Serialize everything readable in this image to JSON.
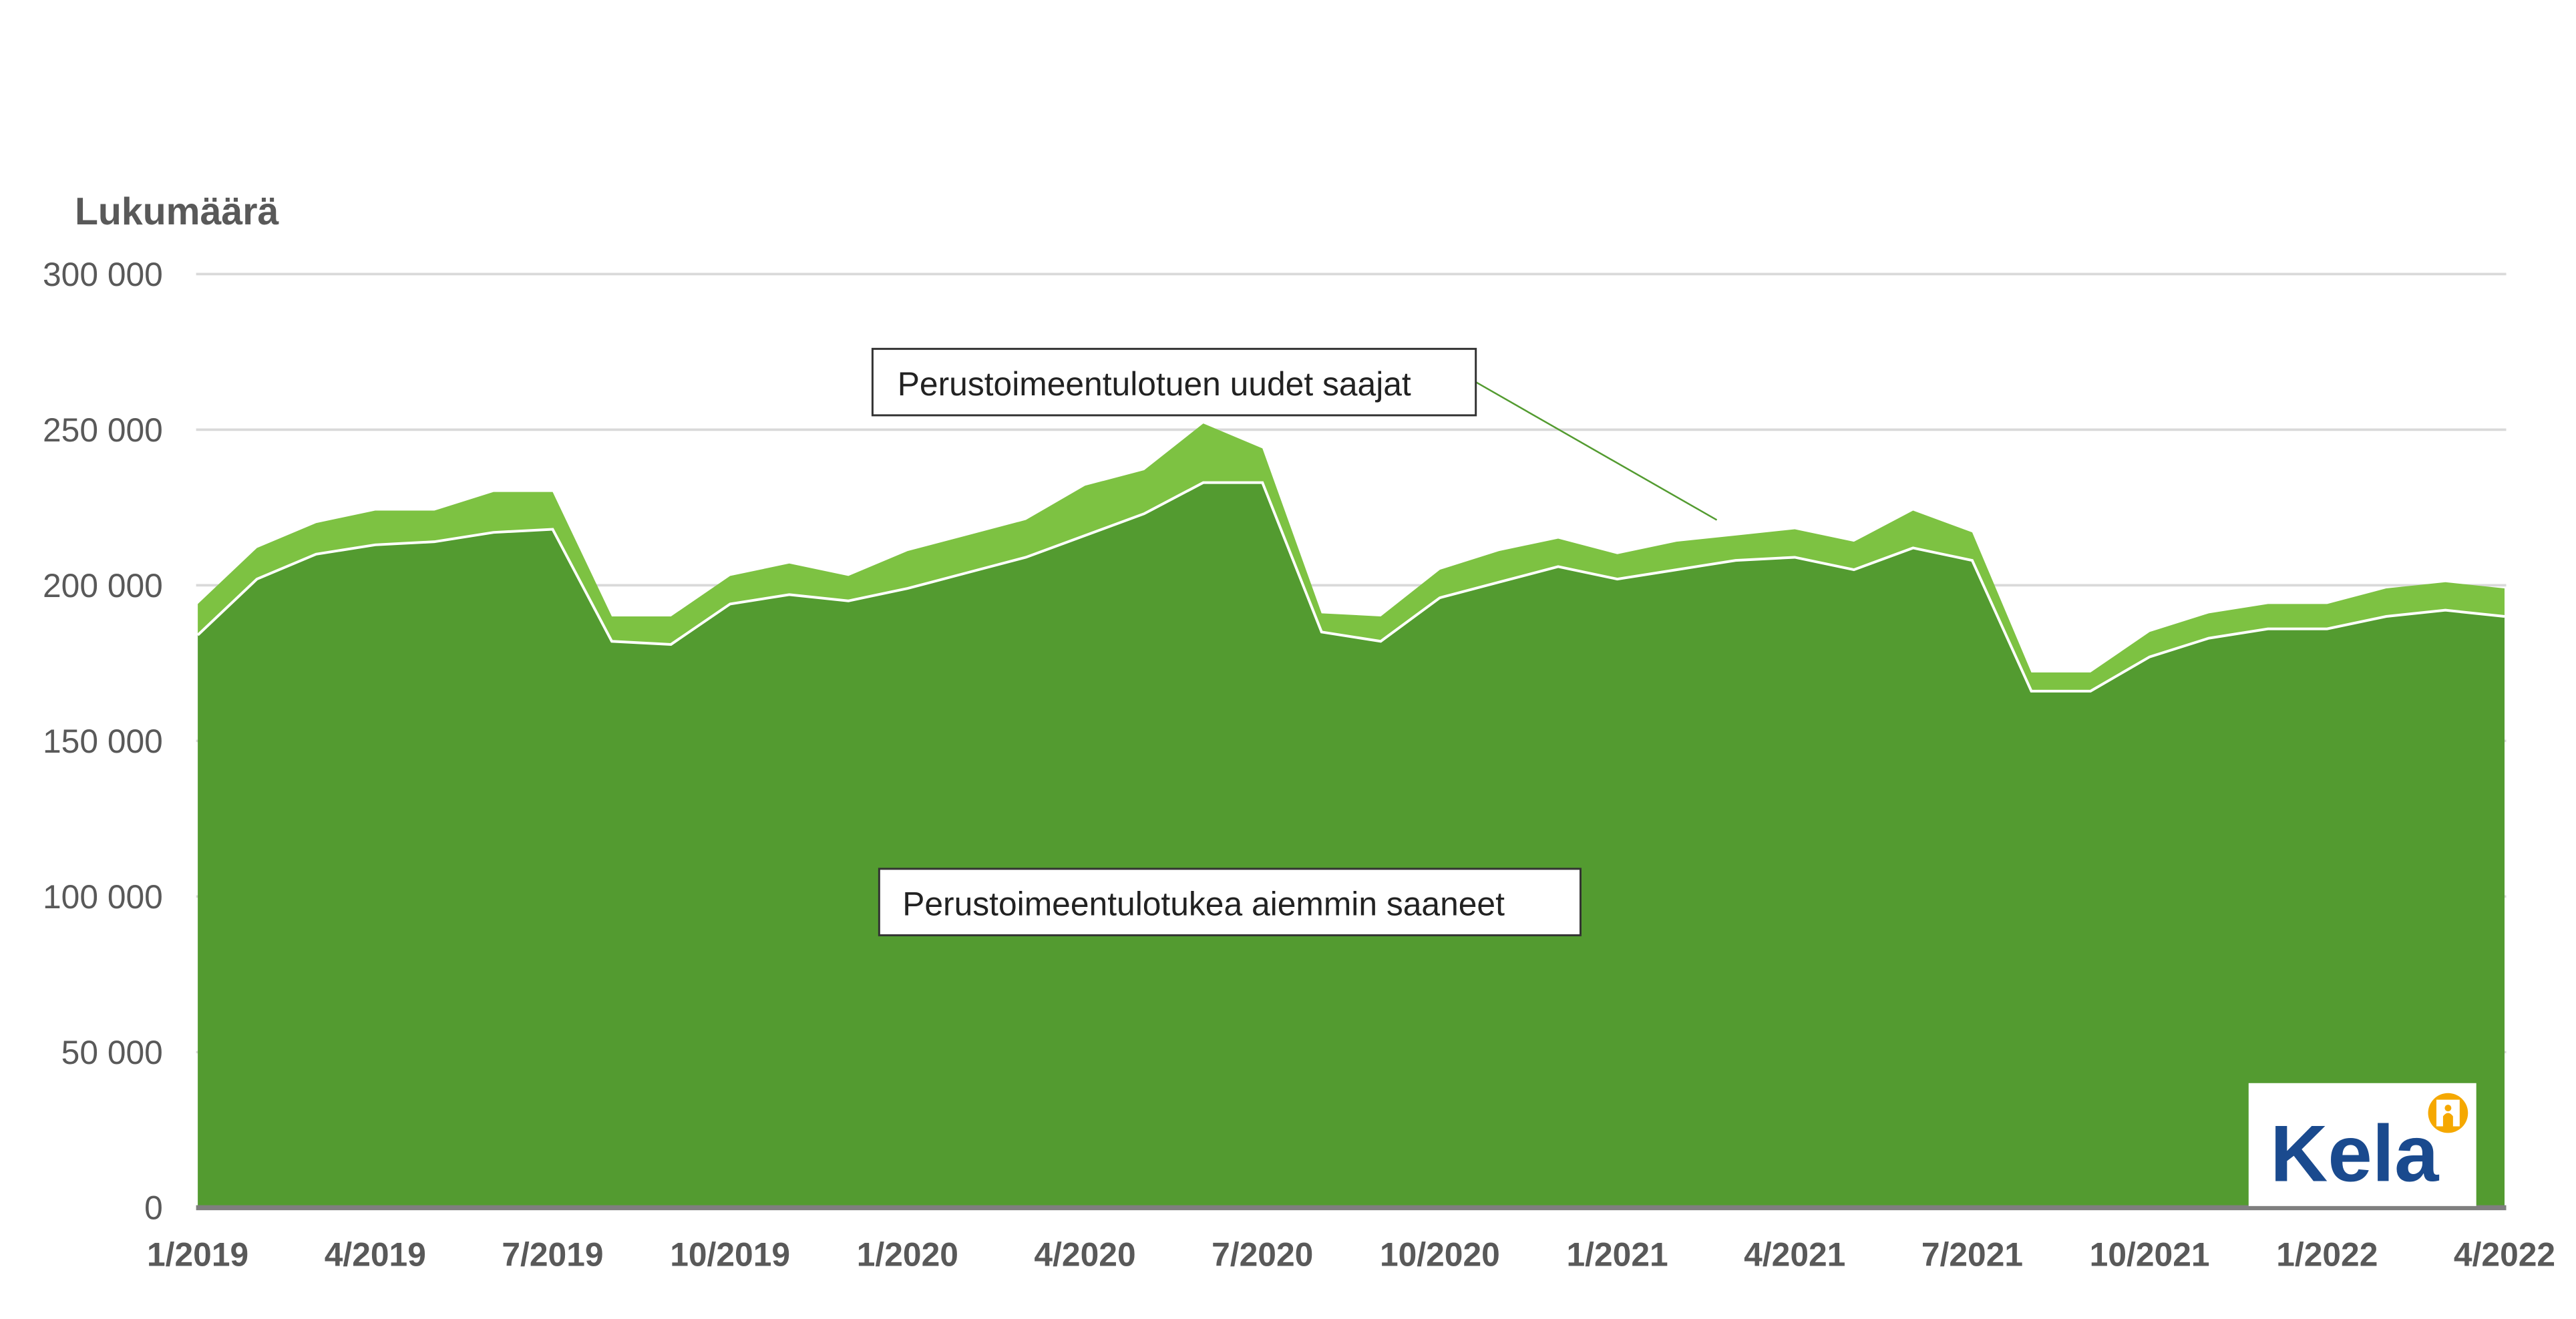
{
  "chart_data": {
    "type": "area",
    "stacked": true,
    "title": "",
    "ylabel": "Lukumäärä",
    "xlabel": "",
    "ylim": [
      0,
      300000
    ],
    "yticks": [
      0,
      50000,
      100000,
      150000,
      200000,
      250000,
      300000
    ],
    "ytick_labels": [
      "0",
      "50 000",
      "100 000",
      "150 000",
      "200 000",
      "250 000",
      "300 000"
    ],
    "grid": true,
    "x": [
      "1/2019",
      "2/2019",
      "3/2019",
      "4/2019",
      "5/2019",
      "6/2019",
      "7/2019",
      "8/2019",
      "9/2019",
      "10/2019",
      "11/2019",
      "12/2019",
      "1/2020",
      "2/2020",
      "3/2020",
      "4/2020",
      "5/2020",
      "6/2020",
      "7/2020",
      "8/2020",
      "9/2020",
      "10/2020",
      "11/2020",
      "12/2020",
      "1/2021",
      "2/2021",
      "3/2021",
      "4/2021",
      "5/2021",
      "6/2021",
      "7/2021",
      "8/2021",
      "9/2021",
      "10/2021",
      "11/2021",
      "12/2021",
      "1/2022",
      "2/2022",
      "3/2022",
      "4/2022"
    ],
    "xtick_labels": [
      "1/2019",
      "4/2019",
      "7/2019",
      "10/2019",
      "1/2020",
      "4/2020",
      "7/2020",
      "10/2020",
      "1/2021",
      "4/2021",
      "7/2021",
      "10/2021",
      "1/2022",
      "4/2022"
    ],
    "series": [
      {
        "name": "Perustoimeentulotukea aiemmin saaneet",
        "color": "#539b30",
        "values": [
          184000,
          202000,
          210000,
          213000,
          214000,
          217000,
          218000,
          182000,
          181000,
          194000,
          197000,
          195000,
          199000,
          204000,
          209000,
          216000,
          223000,
          233000,
          233000,
          185000,
          182000,
          196000,
          201000,
          206000,
          202000,
          205000,
          208000,
          209000,
          205000,
          212000,
          208000,
          166000,
          166000,
          177000,
          183000,
          186000,
          186000,
          190000,
          192000,
          190000
        ]
      },
      {
        "name": "Perustoimeentulotuen uudet saajat",
        "color": "#7dc242",
        "values": [
          10000,
          10000,
          10000,
          11000,
          10000,
          13000,
          12000,
          8000,
          9000,
          9000,
          10000,
          8000,
          12000,
          12000,
          12000,
          16000,
          14000,
          19000,
          11000,
          6000,
          8000,
          9000,
          10000,
          9000,
          8000,
          9000,
          8000,
          9000,
          9000,
          12000,
          9000,
          6000,
          6000,
          8000,
          8000,
          8000,
          8000,
          9000,
          9000,
          9000
        ]
      }
    ]
  },
  "logo": {
    "text": "Kela"
  }
}
